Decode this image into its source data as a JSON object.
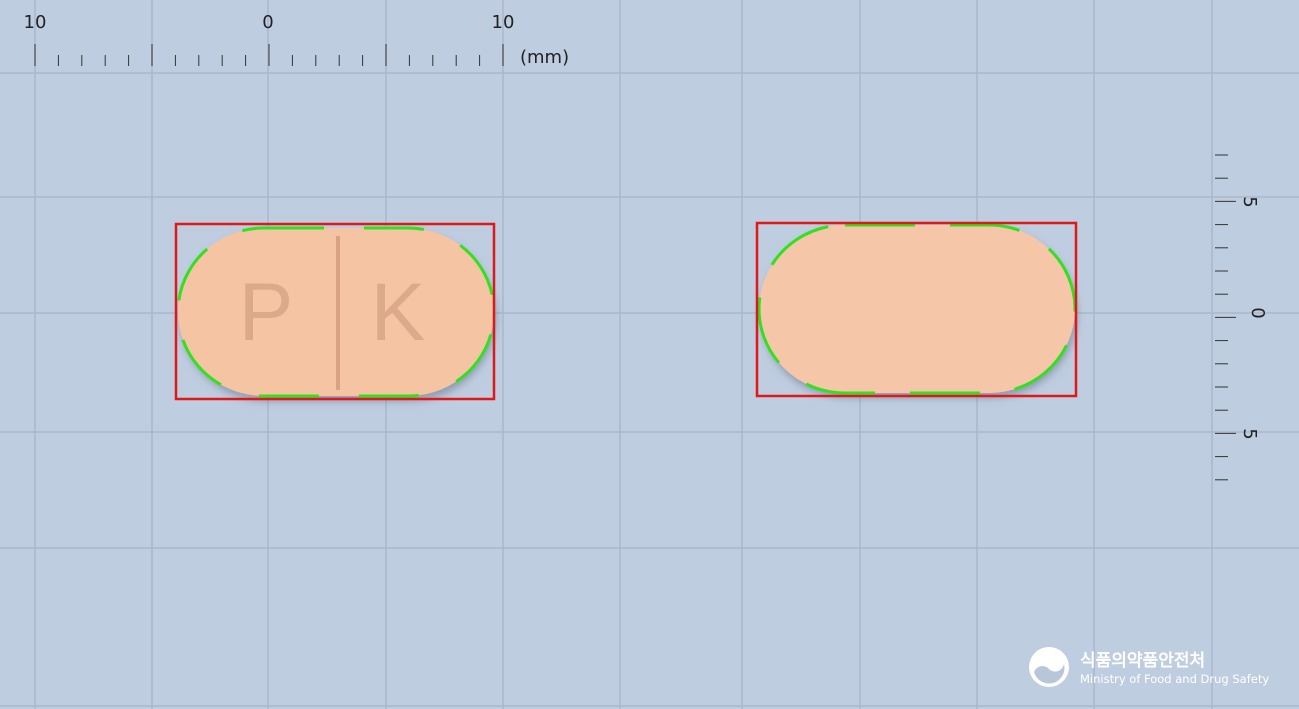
{
  "ruler_top": {
    "labels": [
      "10",
      "0",
      "10"
    ],
    "unit": "(mm)"
  },
  "ruler_right": {
    "labels": [
      "5",
      "0",
      "5"
    ]
  },
  "front_pill": {
    "imprint": [
      "P",
      "K"
    ]
  },
  "logo": {
    "name_ko": "식품의약품안전처",
    "name_en": "Ministry of Food and Drug Safety"
  }
}
